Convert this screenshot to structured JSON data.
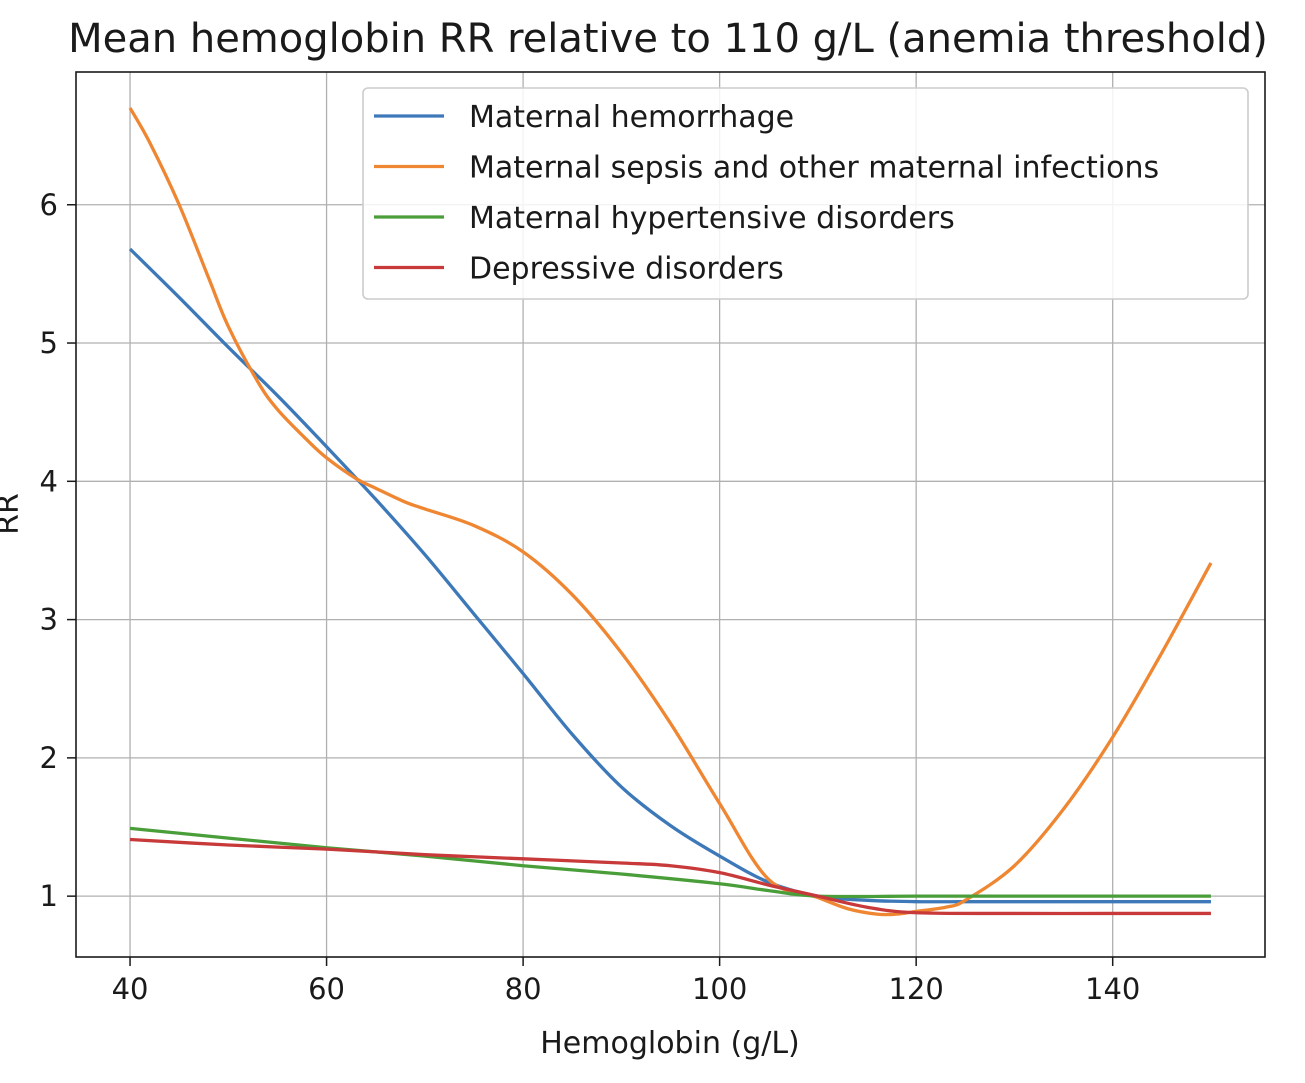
{
  "chart_data": {
    "type": "line",
    "title": "Mean hemoglobin RR relative to 110 g/L (anemia threshold)",
    "xlabel": "Hemoglobin (g/L)",
    "ylabel": "RR",
    "xlim": [
      34.5,
      155.5
    ],
    "ylim": [
      0.56,
      6.96
    ],
    "xticks": [
      40,
      60,
      80,
      100,
      120,
      140
    ],
    "yticks": [
      1,
      2,
      3,
      4,
      5,
      6
    ],
    "grid": true,
    "legend_position": "top-right",
    "series": [
      {
        "name": "Maternal hemorrhage",
        "color": "#3d78b9",
        "x": [
          40,
          45,
          50,
          55,
          60,
          65,
          70,
          75,
          80,
          85,
          90,
          95,
          100,
          105,
          110,
          115,
          120,
          125,
          130,
          135,
          140,
          145,
          150
        ],
        "y": [
          5.68,
          5.33,
          4.97,
          4.62,
          4.25,
          3.87,
          3.47,
          3.04,
          2.61,
          2.17,
          1.79,
          1.51,
          1.29,
          1.1,
          1.0,
          0.97,
          0.96,
          0.96,
          0.96,
          0.96,
          0.96,
          0.96,
          0.96
        ]
      },
      {
        "name": "Maternal sepsis and other maternal infections",
        "color": "#ef8632",
        "x": [
          40,
          42,
          45,
          48,
          50,
          53,
          55,
          58,
          60,
          63,
          65,
          68,
          70,
          75,
          80,
          85,
          90,
          95,
          100,
          105,
          110,
          113,
          116,
          118,
          120,
          123,
          125,
          130,
          135,
          140,
          145,
          150
        ],
        "y": [
          6.7,
          6.45,
          6.0,
          5.47,
          5.12,
          4.72,
          4.52,
          4.3,
          4.17,
          4.02,
          3.95,
          3.85,
          3.8,
          3.68,
          3.49,
          3.18,
          2.76,
          2.25,
          1.67,
          1.12,
          0.99,
          0.91,
          0.87,
          0.87,
          0.89,
          0.92,
          0.97,
          1.22,
          1.63,
          2.15,
          2.76,
          3.41
        ]
      },
      {
        "name": "Maternal hypertensive disorders",
        "color": "#4a9e3a",
        "x": [
          40,
          50,
          60,
          70,
          80,
          90,
          100,
          105,
          110,
          120,
          130,
          140,
          150
        ],
        "y": [
          1.49,
          1.42,
          1.35,
          1.29,
          1.22,
          1.16,
          1.09,
          1.04,
          1.0,
          1.0,
          1.0,
          1.0,
          1.0
        ]
      },
      {
        "name": "Depressive disorders",
        "color": "#c8393a",
        "x": [
          40,
          50,
          60,
          70,
          80,
          90,
          95,
          100,
          105,
          110,
          115,
          120,
          130,
          140,
          150
        ],
        "y": [
          1.41,
          1.37,
          1.34,
          1.3,
          1.27,
          1.24,
          1.22,
          1.17,
          1.08,
          1.0,
          0.92,
          0.88,
          0.875,
          0.875,
          0.875
        ]
      }
    ]
  }
}
